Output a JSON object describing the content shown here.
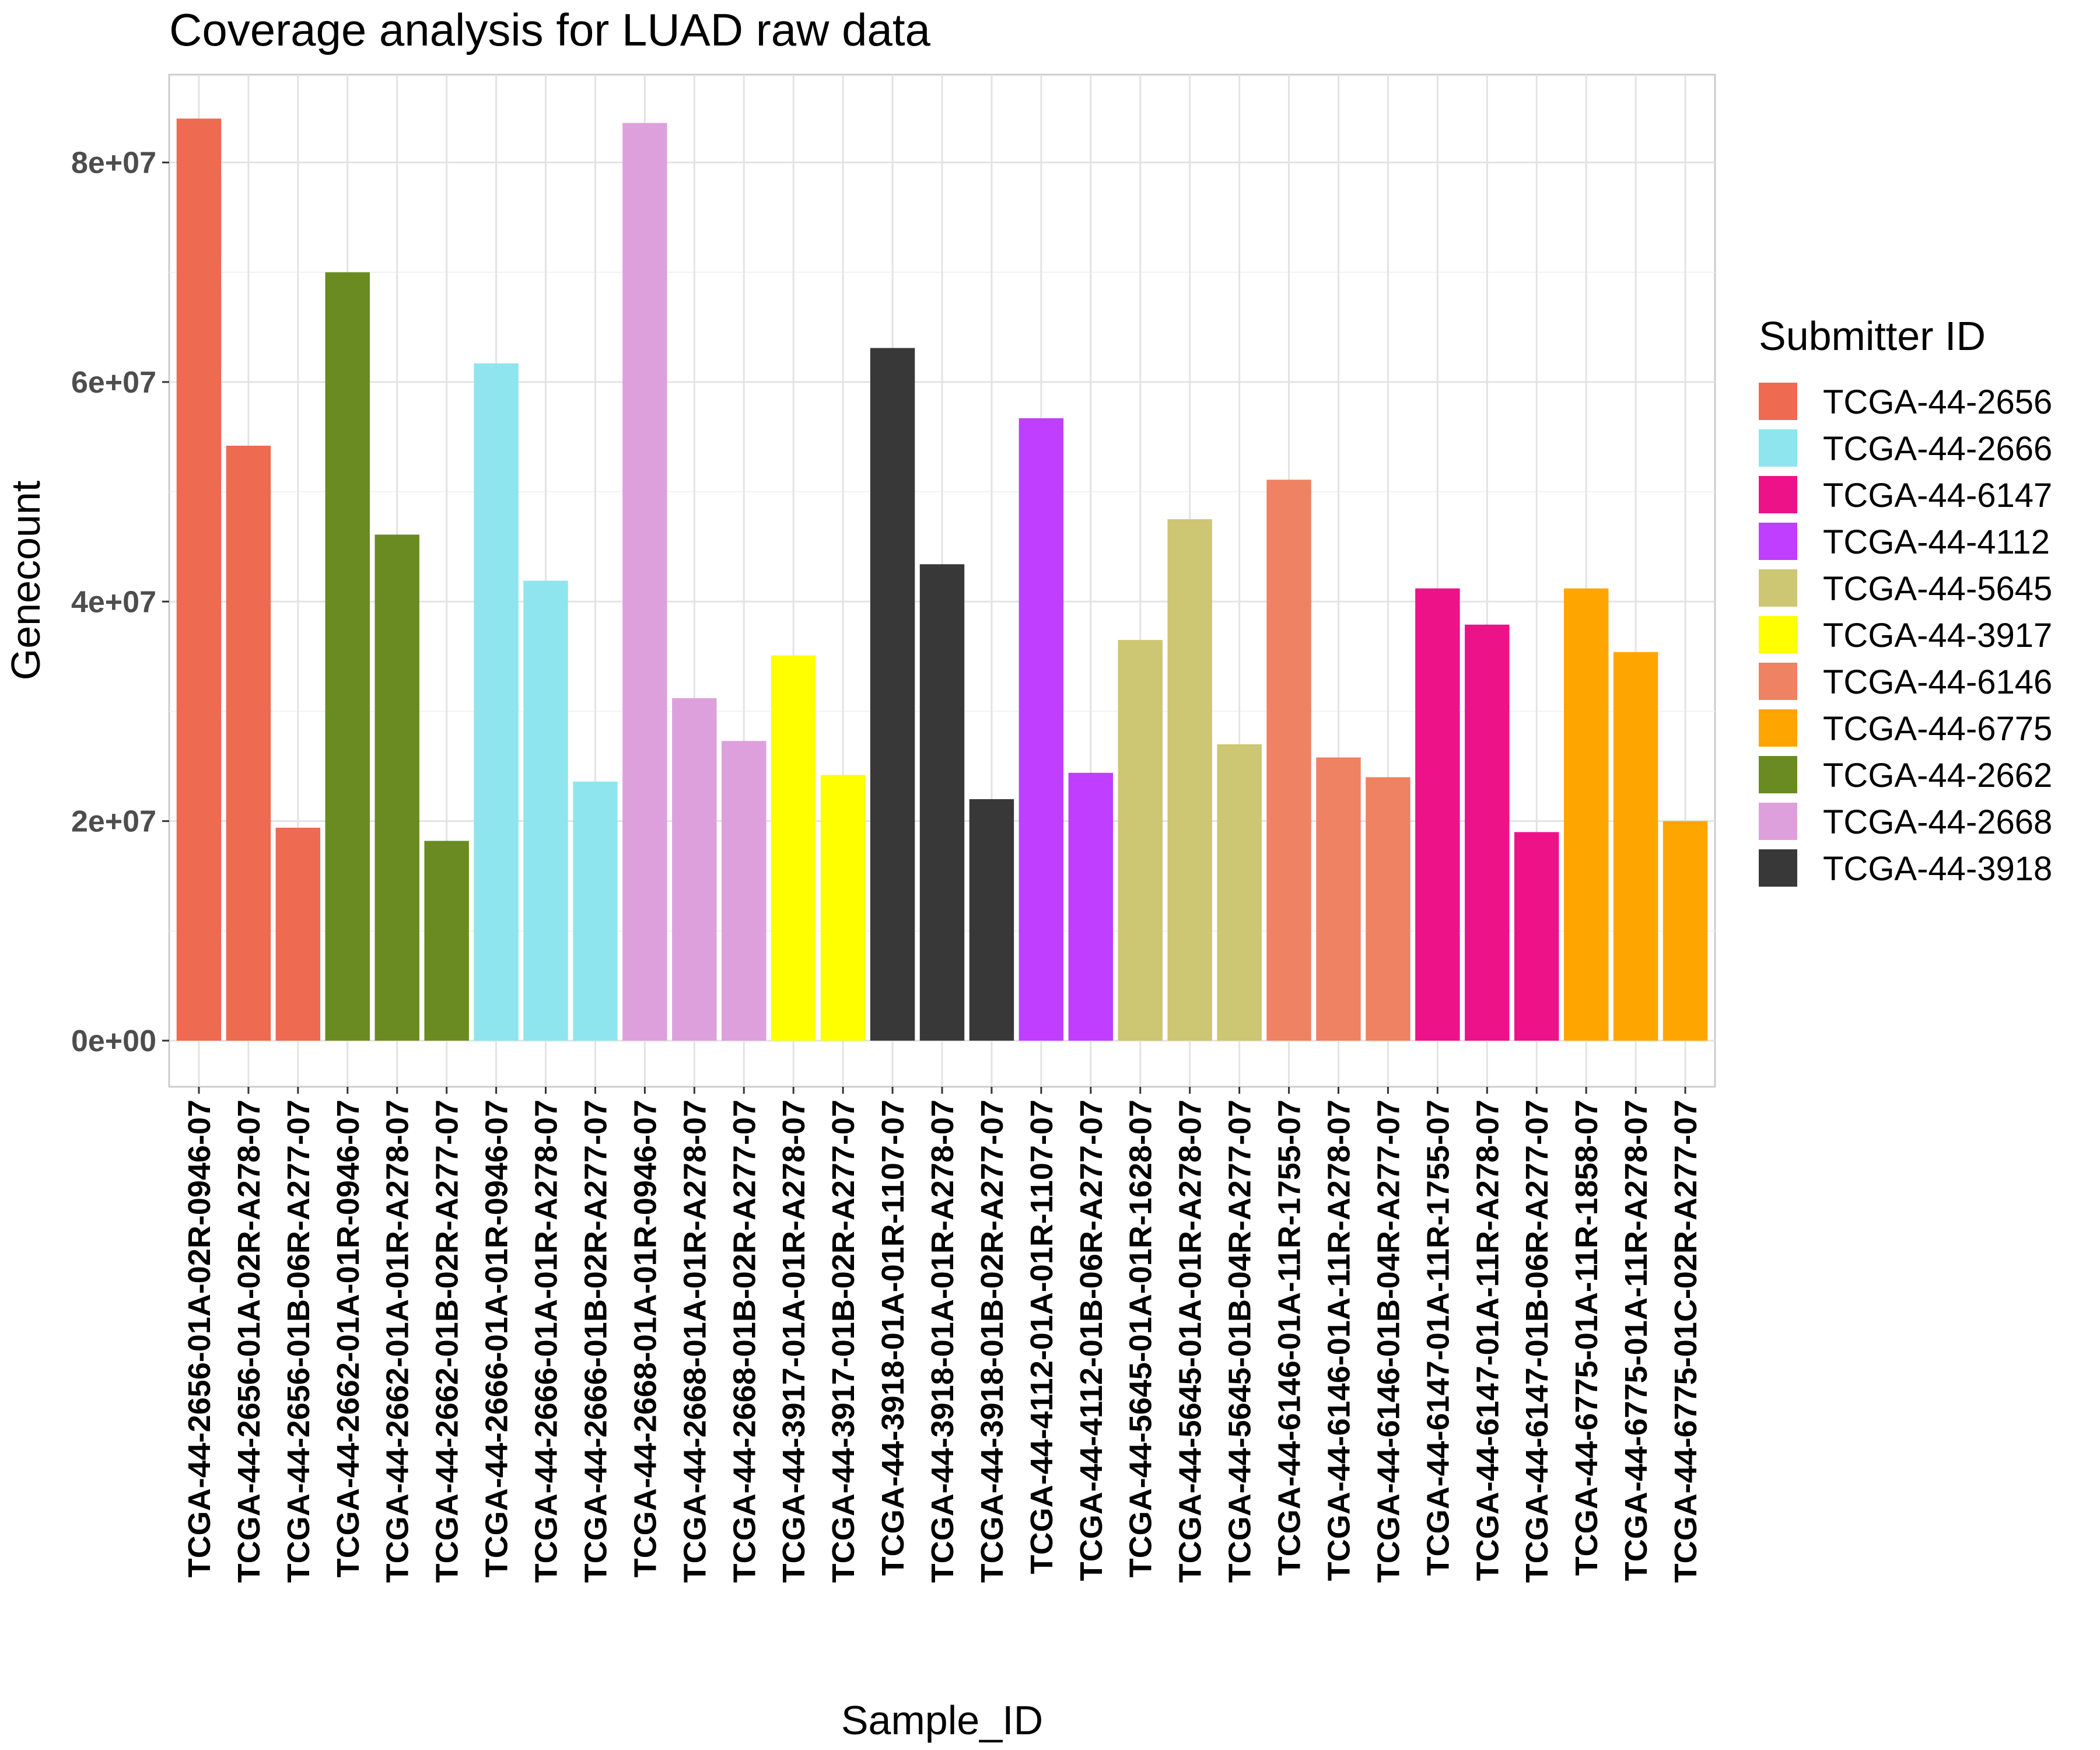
{
  "chart_data": {
    "type": "bar",
    "title": "Coverage analysis for LUAD raw data",
    "xlabel": "Sample_ID",
    "ylabel": "Genecount",
    "ylim": [
      -4200000,
      88000000
    ],
    "yticks": [
      {
        "value": 0,
        "label": "0e+00"
      },
      {
        "value": 20000000,
        "label": "2e+07"
      },
      {
        "value": 40000000,
        "label": "4e+07"
      },
      {
        "value": 60000000,
        "label": "6e+07"
      },
      {
        "value": 80000000,
        "label": "8e+07"
      }
    ],
    "grid": true,
    "legend": {
      "title": "Submitter ID",
      "position": "right",
      "entries": [
        {
          "label": "TCGA-44-2656",
          "color": "#EE6A50"
        },
        {
          "label": "TCGA-44-2666",
          "color": "#8EE5EE"
        },
        {
          "label": "TCGA-44-6147",
          "color": "#EE1289"
        },
        {
          "label": "TCGA-44-4112",
          "color": "#BF3EFF"
        },
        {
          "label": "TCGA-44-5645",
          "color": "#CDC673"
        },
        {
          "label": "TCGA-44-3917",
          "color": "#FFFF00"
        },
        {
          "label": "TCGA-44-6146",
          "color": "#EE8262"
        },
        {
          "label": "TCGA-44-6775",
          "color": "#FFA500"
        },
        {
          "label": "TCGA-44-2662",
          "color": "#698B22"
        },
        {
          "label": "TCGA-44-2668",
          "color": "#DDA0DD"
        },
        {
          "label": "TCGA-44-3918",
          "color": "#383838"
        }
      ]
    },
    "categories": [
      "TCGA-44-2656-01A-02R-0946-07",
      "TCGA-44-2656-01A-02R-A278-07",
      "TCGA-44-2656-01B-06R-A277-07",
      "TCGA-44-2662-01A-01R-0946-07",
      "TCGA-44-2662-01A-01R-A278-07",
      "TCGA-44-2662-01B-02R-A277-07",
      "TCGA-44-2666-01A-01R-0946-07",
      "TCGA-44-2666-01A-01R-A278-07",
      "TCGA-44-2666-01B-02R-A277-07",
      "TCGA-44-2668-01A-01R-0946-07",
      "TCGA-44-2668-01A-01R-A278-07",
      "TCGA-44-2668-01B-02R-A277-07",
      "TCGA-44-3917-01A-01R-A278-07",
      "TCGA-44-3917-01B-02R-A277-07",
      "TCGA-44-3918-01A-01R-1107-07",
      "TCGA-44-3918-01A-01R-A278-07",
      "TCGA-44-3918-01B-02R-A277-07",
      "TCGA-44-4112-01A-01R-1107-07",
      "TCGA-44-4112-01B-06R-A277-07",
      "TCGA-44-5645-01A-01R-1628-07",
      "TCGA-44-5645-01A-01R-A278-07",
      "TCGA-44-5645-01B-04R-A277-07",
      "TCGA-44-6146-01A-11R-1755-07",
      "TCGA-44-6146-01A-11R-A278-07",
      "TCGA-44-6146-01B-04R-A277-07",
      "TCGA-44-6147-01A-11R-1755-07",
      "TCGA-44-6147-01A-11R-A278-07",
      "TCGA-44-6147-01B-06R-A277-07",
      "TCGA-44-6775-01A-11R-1858-07",
      "TCGA-44-6775-01A-11R-A278-07",
      "TCGA-44-6775-01C-02R-A277-07"
    ],
    "values": [
      84000000,
      54200000,
      19400000,
      70000000,
      46100000,
      18200000,
      61700000,
      41900000,
      23600000,
      83600000,
      31200000,
      27300000,
      35100000,
      24200000,
      63100000,
      43400000,
      22000000,
      56700000,
      24400000,
      36500000,
      47500000,
      27000000,
      51100000,
      25800000,
      24000000,
      41200000,
      37900000,
      19000000,
      41200000,
      35400000,
      20000000
    ],
    "groups": [
      "TCGA-44-2656",
      "TCGA-44-2656",
      "TCGA-44-2656",
      "TCGA-44-2662",
      "TCGA-44-2662",
      "TCGA-44-2662",
      "TCGA-44-2666",
      "TCGA-44-2666",
      "TCGA-44-2666",
      "TCGA-44-2668",
      "TCGA-44-2668",
      "TCGA-44-2668",
      "TCGA-44-3917",
      "TCGA-44-3917",
      "TCGA-44-3918",
      "TCGA-44-3918",
      "TCGA-44-3918",
      "TCGA-44-4112",
      "TCGA-44-4112",
      "TCGA-44-5645",
      "TCGA-44-5645",
      "TCGA-44-5645",
      "TCGA-44-6146",
      "TCGA-44-6146",
      "TCGA-44-6146",
      "TCGA-44-6147",
      "TCGA-44-6147",
      "TCGA-44-6147",
      "TCGA-44-6775",
      "TCGA-44-6775",
      "TCGA-44-6775"
    ]
  }
}
